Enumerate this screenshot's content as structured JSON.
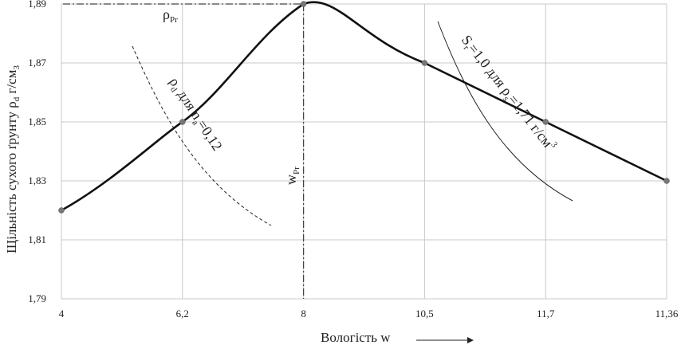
{
  "chart_data": {
    "type": "line",
    "x_ticks": [
      "4",
      "6,2",
      "8",
      "10,5",
      "11,7",
      "11,36"
    ],
    "y_ticks": [
      "1,79",
      "1,81",
      "1,83",
      "1,85",
      "1,87",
      "1,89"
    ],
    "ylim": [
      1.79,
      1.89
    ],
    "grid": true,
    "xlabel": "Вологість w",
    "ylabel": "Щільність сухого ґрунту ρd г/см3",
    "ylabel_main": "Щільність сухого ґрунту ρ",
    "ylabel_sub": "d",
    "ylabel_unit": " г/см",
    "ylabel_unit_sub": "3",
    "series": [
      {
        "role": "compaction-curve",
        "points": [
          {
            "x": "4",
            "y": 1.82
          },
          {
            "x": "6,2",
            "y": 1.85
          },
          {
            "x": "8",
            "y": 1.89
          },
          {
            "x": "10,5",
            "y": 1.87
          },
          {
            "x": "11,7",
            "y": 1.85
          },
          {
            "x": "11,36",
            "y": 1.83
          }
        ]
      }
    ],
    "annotations": {
      "rho_pr": {
        "main": "ρ",
        "sub": "Pr"
      },
      "w_pr": {
        "main": "w",
        "sub": "Pr"
      },
      "dashed_curve": {
        "main": "ρ",
        "sub1": "d",
        "mid": " для n",
        "sub2": "a",
        "tail": "=0,12"
      },
      "solid_curve": {
        "main": "S",
        "sub1": "r",
        "mid": "=1,0 для ρ",
        "sub2": "s",
        "tail": "=1,71 г/см",
        "sup": "3"
      }
    }
  }
}
